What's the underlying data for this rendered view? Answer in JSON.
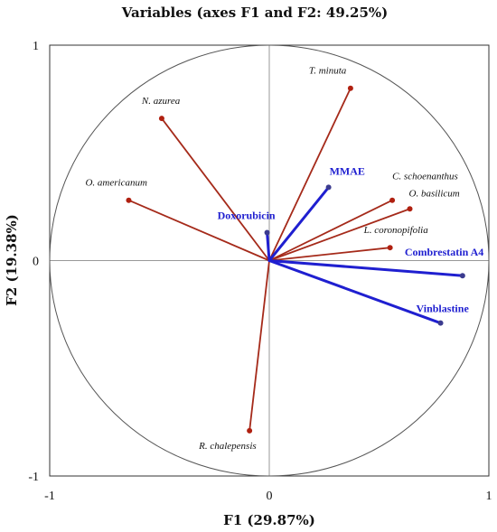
{
  "chart_data": {
    "type": "scatter",
    "subtype": "pca-correlation-circle",
    "title": "Variables (axes F1 and F2: 49.25%)",
    "xlabel": "F1 (29.87%)",
    "ylabel": "F2 (19.38%)",
    "xlim": [
      -1,
      1
    ],
    "ylim": [
      -1,
      1
    ],
    "x_ticks": [
      "-1",
      "0",
      "1"
    ],
    "y_ticks": [
      "1",
      "0",
      "-1"
    ],
    "grid": false,
    "correlation_circle": true,
    "colors": {
      "active": "#a52a1a",
      "supplementary": "#1f1fd0",
      "active_point": "#b02010",
      "supplementary_point": "#3b3b8f",
      "axis": "#999999",
      "frame": "#333333",
      "circle": "#555555"
    },
    "series": [
      {
        "group": "active",
        "points": [
          {
            "label": "T. minuta",
            "x": 0.37,
            "y": 0.8
          },
          {
            "label": "N. azurea",
            "x": -0.49,
            "y": 0.66
          },
          {
            "label": "O. americanum",
            "x": -0.64,
            "y": 0.28
          },
          {
            "label": "C. schoenanthus",
            "x": 0.56,
            "y": 0.28
          },
          {
            "label": "O. basilicum",
            "x": 0.64,
            "y": 0.24
          },
          {
            "label": "L. coronopifolia",
            "x": 0.55,
            "y": 0.06
          },
          {
            "label": "R. chalepensis",
            "x": -0.09,
            "y": -0.79
          }
        ]
      },
      {
        "group": "supplementary",
        "points": [
          {
            "label": "MMAE",
            "x": 0.27,
            "y": 0.34
          },
          {
            "label": "Doxorubicin",
            "x": -0.01,
            "y": 0.13
          },
          {
            "label": "Combrestatin A4",
            "x": 0.88,
            "y": -0.07
          },
          {
            "label": "Vinblastine",
            "x": 0.78,
            "y": -0.29
          }
        ]
      }
    ]
  }
}
